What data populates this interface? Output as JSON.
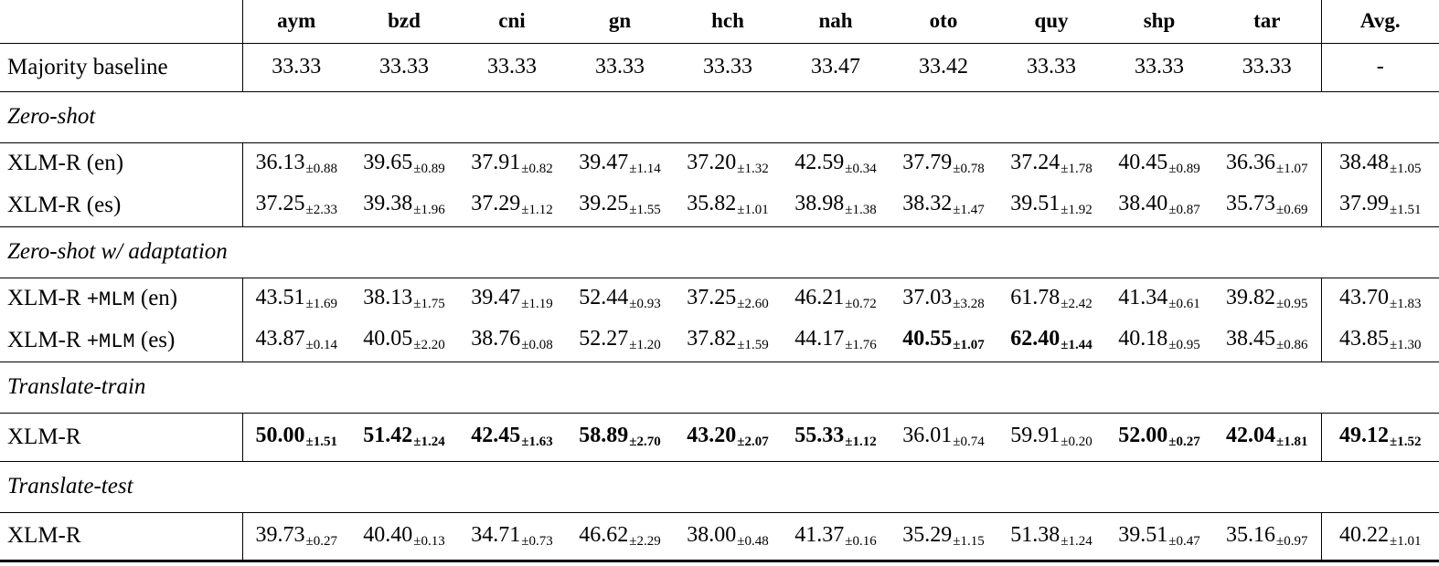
{
  "table": {
    "columns": [
      "",
      "aym",
      "bzd",
      "cni",
      "gn",
      "hch",
      "nah",
      "oto",
      "quy",
      "shp",
      "tar",
      "Avg."
    ],
    "rows": [
      {
        "type": "data",
        "label_parts": [
          {
            "t": "Majority baseline"
          }
        ],
        "values": [
          {
            "v": "33.33"
          },
          {
            "v": "33.33"
          },
          {
            "v": "33.33"
          },
          {
            "v": "33.33"
          },
          {
            "v": "33.33"
          },
          {
            "v": "33.47"
          },
          {
            "v": "33.42"
          },
          {
            "v": "33.33"
          },
          {
            "v": "33.33"
          },
          {
            "v": "33.33"
          },
          {
            "v": "-"
          }
        ]
      },
      {
        "type": "section",
        "label": "Zero-shot"
      },
      {
        "type": "data",
        "label_parts": [
          {
            "t": "XLM-R (en)"
          }
        ],
        "values": [
          {
            "v": "36.13",
            "s": "0.88"
          },
          {
            "v": "39.65",
            "s": "0.89"
          },
          {
            "v": "37.91",
            "s": "0.82"
          },
          {
            "v": "39.47",
            "s": "1.14"
          },
          {
            "v": "37.20",
            "s": "1.32"
          },
          {
            "v": "42.59",
            "s": "0.34"
          },
          {
            "v": "37.79",
            "s": "0.78"
          },
          {
            "v": "37.24",
            "s": "1.78"
          },
          {
            "v": "40.45",
            "s": "0.89"
          },
          {
            "v": "36.36",
            "s": "1.07"
          },
          {
            "v": "38.48",
            "s": "1.05"
          }
        ]
      },
      {
        "type": "data",
        "label_parts": [
          {
            "t": "XLM-R (es)"
          }
        ],
        "values": [
          {
            "v": "37.25",
            "s": "2.33"
          },
          {
            "v": "39.38",
            "s": "1.96"
          },
          {
            "v": "37.29",
            "s": "1.12"
          },
          {
            "v": "39.25",
            "s": "1.55"
          },
          {
            "v": "35.82",
            "s": "1.01"
          },
          {
            "v": "38.98",
            "s": "1.38"
          },
          {
            "v": "38.32",
            "s": "1.47"
          },
          {
            "v": "39.51",
            "s": "1.92"
          },
          {
            "v": "38.40",
            "s": "0.87"
          },
          {
            "v": "35.73",
            "s": "0.69"
          },
          {
            "v": "37.99",
            "s": "1.51"
          }
        ]
      },
      {
        "type": "section",
        "label": "Zero-shot w/ adaptation"
      },
      {
        "type": "data",
        "label_parts": [
          {
            "t": "XLM-R "
          },
          {
            "t": "+MLM",
            "mono": true
          },
          {
            "t": " (en)"
          }
        ],
        "values": [
          {
            "v": "43.51",
            "s": "1.69"
          },
          {
            "v": "38.13",
            "s": "1.75"
          },
          {
            "v": "39.47",
            "s": "1.19"
          },
          {
            "v": "52.44",
            "s": "0.93"
          },
          {
            "v": "37.25",
            "s": "2.60"
          },
          {
            "v": "46.21",
            "s": "0.72"
          },
          {
            "v": "37.03",
            "s": "3.28"
          },
          {
            "v": "61.78",
            "s": "2.42"
          },
          {
            "v": "41.34",
            "s": "0.61"
          },
          {
            "v": "39.82",
            "s": "0.95"
          },
          {
            "v": "43.70",
            "s": "1.83"
          }
        ]
      },
      {
        "type": "data",
        "label_parts": [
          {
            "t": "XLM-R "
          },
          {
            "t": "+MLM",
            "mono": true
          },
          {
            "t": " (es)"
          }
        ],
        "values": [
          {
            "v": "43.87",
            "s": "0.14"
          },
          {
            "v": "40.05",
            "s": "2.20"
          },
          {
            "v": "38.76",
            "s": "0.08"
          },
          {
            "v": "52.27",
            "s": "1.20"
          },
          {
            "v": "37.82",
            "s": "1.59"
          },
          {
            "v": "44.17",
            "s": "1.76"
          },
          {
            "v": "40.55",
            "s": "1.07",
            "b": true
          },
          {
            "v": "62.40",
            "s": "1.44",
            "b": true
          },
          {
            "v": "40.18",
            "s": "0.95"
          },
          {
            "v": "38.45",
            "s": "0.86"
          },
          {
            "v": "43.85",
            "s": "1.30"
          }
        ]
      },
      {
        "type": "section",
        "label": "Translate-train"
      },
      {
        "type": "data",
        "label_parts": [
          {
            "t": "XLM-R"
          }
        ],
        "values": [
          {
            "v": "50.00",
            "s": "1.51",
            "b": true
          },
          {
            "v": "51.42",
            "s": "1.24",
            "b": true
          },
          {
            "v": "42.45",
            "s": "1.63",
            "b": true
          },
          {
            "v": "58.89",
            "s": "2.70",
            "b": true
          },
          {
            "v": "43.20",
            "s": "2.07",
            "b": true
          },
          {
            "v": "55.33",
            "s": "1.12",
            "b": true
          },
          {
            "v": "36.01",
            "s": "0.74"
          },
          {
            "v": "59.91",
            "s": "0.20"
          },
          {
            "v": "52.00",
            "s": "0.27",
            "b": true
          },
          {
            "v": "42.04",
            "s": "1.81",
            "b": true
          },
          {
            "v": "49.12",
            "s": "1.52",
            "b": true
          }
        ]
      },
      {
        "type": "section",
        "label": "Translate-test"
      },
      {
        "type": "data",
        "label_parts": [
          {
            "t": "XLM-R"
          }
        ],
        "values": [
          {
            "v": "39.73",
            "s": "0.27"
          },
          {
            "v": "40.40",
            "s": "0.13"
          },
          {
            "v": "34.71",
            "s": "0.73"
          },
          {
            "v": "46.62",
            "s": "2.29"
          },
          {
            "v": "38.00",
            "s": "0.48"
          },
          {
            "v": "41.37",
            "s": "0.16"
          },
          {
            "v": "35.29",
            "s": "1.15"
          },
          {
            "v": "51.38",
            "s": "1.24"
          },
          {
            "v": "39.51",
            "s": "0.47"
          },
          {
            "v": "35.16",
            "s": "0.97"
          },
          {
            "v": "40.22",
            "s": "1.01"
          }
        ]
      }
    ]
  }
}
